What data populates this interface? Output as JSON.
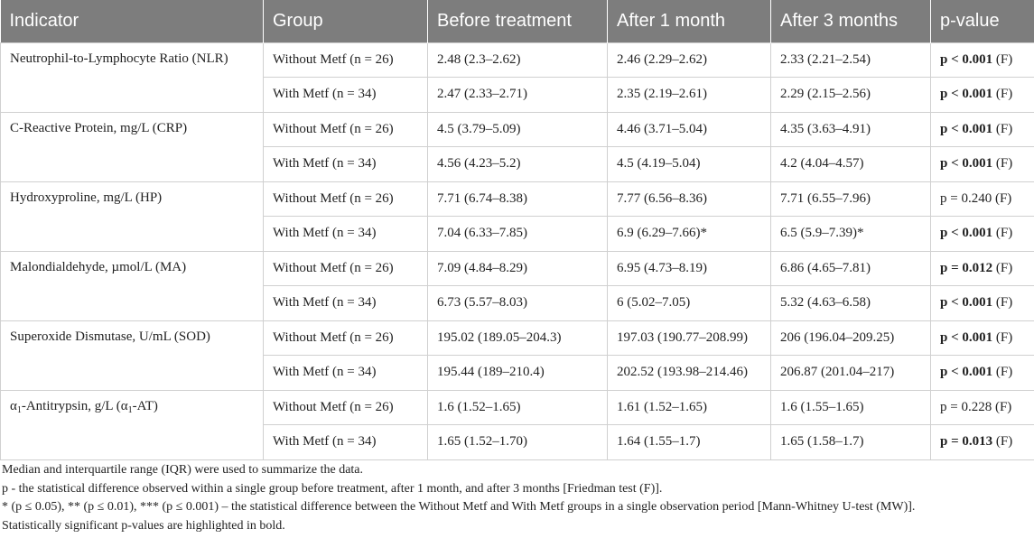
{
  "table": {
    "headers": [
      "Indicator",
      "Group",
      "Before treatment",
      "After 1 month",
      "After 3 months",
      "p-value"
    ],
    "groups": [
      {
        "indicator": "Neutrophil-to-Lymphocyte Ratio (NLR)",
        "rows": [
          {
            "group": "Without Metf (n = 26)",
            "before": "2.48 (2.3–2.62)",
            "m1": "2.46 (2.29–2.62)",
            "m3": "2.33 (2.21–2.54)",
            "p_text": "p < 0.001",
            "p_bold": true,
            "p_test": " (F)"
          },
          {
            "group": "With Metf (n = 34)",
            "before": "2.47 (2.33–2.71)",
            "m1": "2.35 (2.19–2.61)",
            "m3": "2.29 (2.15–2.56)",
            "p_text": "p < 0.001",
            "p_bold": true,
            "p_test": " (F)"
          }
        ]
      },
      {
        "indicator": "C-Reactive Protein, mg/L (CRP)",
        "rows": [
          {
            "group": "Without Metf (n = 26)",
            "before": "4.5 (3.79–5.09)",
            "m1": "4.46 (3.71–5.04)",
            "m3": "4.35 (3.63–4.91)",
            "p_text": "p < 0.001",
            "p_bold": true,
            "p_test": " (F)"
          },
          {
            "group": "With Metf (n = 34)",
            "before": "4.56 (4.23–5.2)",
            "m1": "4.5 (4.19–5.04)",
            "m3": "4.2 (4.04–4.57)",
            "p_text": "p < 0.001",
            "p_bold": true,
            "p_test": " (F)"
          }
        ]
      },
      {
        "indicator": "Hydroxyproline, mg/L (HP)",
        "rows": [
          {
            "group": "Without Metf (n = 26)",
            "before": "7.71 (6.74–8.38)",
            "m1": "7.77 (6.56–8.36)",
            "m3": "7.71 (6.55–7.96)",
            "p_text": "p = 0.240",
            "p_bold": false,
            "p_test": " (F)"
          },
          {
            "group": "With Metf (n = 34)",
            "before": "7.04 (6.33–7.85)",
            "m1": "6.9 (6.29–7.66)*",
            "m3": "6.5 (5.9–7.39)*",
            "p_text": "p < 0.001",
            "p_bold": true,
            "p_test": " (F)"
          }
        ]
      },
      {
        "indicator": "Malondialdehyde, µmol/L (MA)",
        "rows": [
          {
            "group": "Without Metf (n = 26)",
            "before": "7.09 (4.84–8.29)",
            "m1": "6.95 (4.73–8.19)",
            "m3": "6.86 (4.65–7.81)",
            "p_text": "p = 0.012",
            "p_bold": true,
            "p_test": " (F)"
          },
          {
            "group": "With Metf (n = 34)",
            "before": "6.73 (5.57–8.03)",
            "m1": "6 (5.02–7.05)",
            "m3": "5.32 (4.63–6.58)",
            "p_text": "p < 0.001",
            "p_bold": true,
            "p_test": " (F)"
          }
        ]
      },
      {
        "indicator": "Superoxide Dismutase, U/mL (SOD)",
        "rows": [
          {
            "group": "Without Metf (n = 26)",
            "before": "195.02 (189.05–204.3)",
            "m1": "197.03 (190.77–208.99)",
            "m3": "206 (196.04–209.25)",
            "p_text": "p < 0.001",
            "p_bold": true,
            "p_test": " (F)"
          },
          {
            "group": "With Metf (n = 34)",
            "before": "195.44 (189–210.4)",
            "m1": "202.52 (193.98–214.46)",
            "m3": "206.87 (201.04–217)",
            "p_text": "p < 0.001",
            "p_bold": true,
            "p_test": " (F)"
          }
        ]
      },
      {
        "indicator_parts": [
          "α",
          "1",
          "-Antitrypsin, g/L (α",
          "1",
          "-AT)"
        ],
        "rows": [
          {
            "group": "Without Metf (n = 26)",
            "before": "1.6 (1.52–1.65)",
            "m1": "1.61 (1.52–1.65)",
            "m3": "1.6 (1.55–1.65)",
            "p_text": "p = 0.228",
            "p_bold": false,
            "p_test": " (F)"
          },
          {
            "group": "With Metf (n = 34)",
            "before": "1.65 (1.52–1.70)",
            "m1": "1.64 (1.55–1.7)",
            "m3": "1.65 (1.58–1.7)",
            "p_text": "p = 0.013",
            "p_bold": true,
            "p_test": " (F)"
          }
        ]
      }
    ]
  },
  "notes": [
    "Median and interquartile range (IQR) were used to summarize the data.",
    "p - the statistical difference observed within a single group before treatment, after 1 month, and after 3 months [Friedman test (F)].",
    "* (p ≤ 0.05), ** (p ≤ 0.01), *** (p ≤ 0.001) – the statistical difference between the Without Metf and With Metf groups in a single observation period [Mann-Whitney U-test (MW)].",
    "Statistically significant p-values are highlighted in bold."
  ]
}
